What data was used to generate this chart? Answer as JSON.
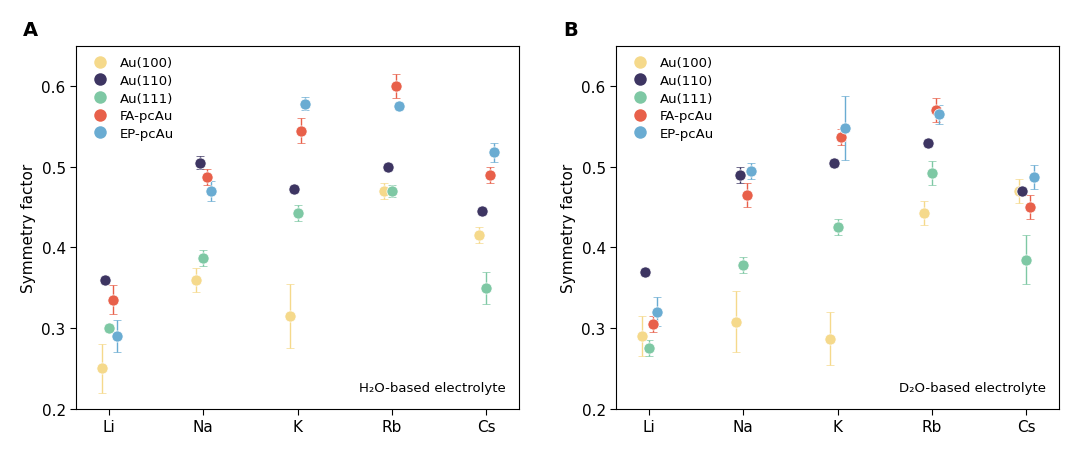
{
  "panel_A_label": "A",
  "panel_B_label": "B",
  "categories": [
    "Li",
    "Na",
    "K",
    "Rb",
    "Cs"
  ],
  "ylabel": "Symmetry factor",
  "ylim": [
    0.2,
    0.65
  ],
  "yticks": [
    0.2,
    0.3,
    0.4,
    0.5,
    0.6
  ],
  "legend_labels": [
    "Au(100)",
    "Au(110)",
    "Au(111)",
    "FA-pcAu",
    "EP-pcAu"
  ],
  "colors": {
    "Au100": "#F5D98B",
    "Au110": "#3D3562",
    "Au111": "#7EC8A4",
    "FA": "#E8604A",
    "EP": "#6AACD2"
  },
  "annotation_A": "H₂O-based electrolyte",
  "annotation_B": "D₂O-based electrolyte",
  "A": {
    "Au100": {
      "y": [
        0.25,
        0.36,
        0.315,
        0.47,
        0.415
      ],
      "yerr": [
        0.03,
        0.015,
        0.04,
        0.01,
        0.01
      ]
    },
    "Au110": {
      "y": [
        0.36,
        0.505,
        0.472,
        0.5,
        0.445
      ],
      "yerr": [
        0.005,
        0.008,
        0.005,
        0.005,
        0.005
      ]
    },
    "Au111": {
      "y": [
        0.3,
        0.387,
        0.443,
        0.47,
        0.35
      ],
      "yerr": [
        0.005,
        0.01,
        0.01,
        0.008,
        0.02
      ]
    },
    "FA": {
      "y": [
        0.335,
        0.487,
        0.545,
        0.6,
        0.49
      ],
      "yerr": [
        0.018,
        0.01,
        0.015,
        0.015,
        0.01
      ]
    },
    "EP": {
      "y": [
        0.29,
        0.47,
        0.578,
        0.575,
        0.518
      ],
      "yerr": [
        0.02,
        0.012,
        0.008,
        0.005,
        0.012
      ]
    }
  },
  "B": {
    "Au100": {
      "y": [
        0.29,
        0.308,
        0.287,
        0.443,
        0.47
      ],
      "yerr": [
        0.025,
        0.038,
        0.033,
        0.015,
        0.015
      ]
    },
    "Au110": {
      "y": [
        0.37,
        0.49,
        0.505,
        0.53,
        0.47
      ],
      "yerr": [
        0.005,
        0.01,
        0.005,
        0.005,
        0.005
      ]
    },
    "Au111": {
      "y": [
        0.275,
        0.378,
        0.425,
        0.492,
        0.385
      ],
      "yerr": [
        0.01,
        0.01,
        0.01,
        0.015,
        0.03
      ]
    },
    "FA": {
      "y": [
        0.305,
        0.465,
        0.537,
        0.57,
        0.45
      ],
      "yerr": [
        0.01,
        0.015,
        0.01,
        0.015,
        0.015
      ]
    },
    "EP": {
      "y": [
        0.32,
        0.495,
        0.548,
        0.565,
        0.487
      ],
      "yerr": [
        0.018,
        0.01,
        0.04,
        0.012,
        0.015
      ]
    }
  },
  "offsets": {
    "Au100": -0.08,
    "Au110": -0.04,
    "Au111": 0.0,
    "FA": 0.04,
    "EP": 0.08
  },
  "markersize": 8,
  "capsize": 3,
  "elinewidth": 1.0,
  "figsize": [
    10.8,
    4.56
  ],
  "dpi": 100
}
